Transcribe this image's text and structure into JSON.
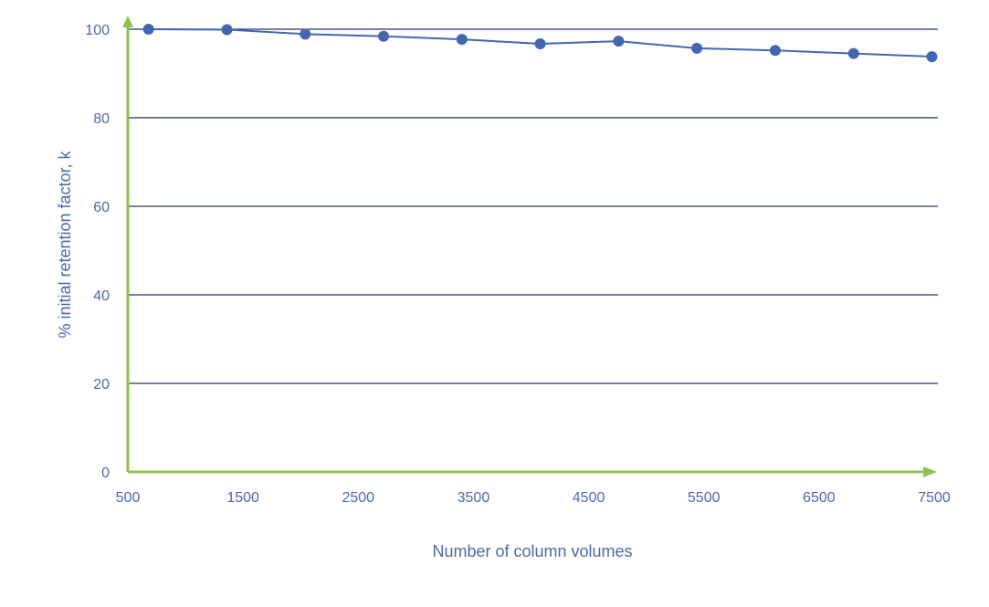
{
  "chart_data": {
    "type": "line",
    "title": "",
    "xlabel": "Number of column volumes",
    "ylabel": "% initial retention factor, k",
    "xlim": [
      500,
      7500
    ],
    "ylim": [
      0,
      100
    ],
    "xticks": [
      500,
      1500,
      2500,
      3500,
      4500,
      5500,
      6500,
      7500
    ],
    "yticks": [
      0,
      20,
      40,
      60,
      80,
      100
    ],
    "grid": "horizontal",
    "legend": "none",
    "series": [
      {
        "x": [
          680,
          1360,
          2040,
          2720,
          3400,
          4080,
          4760,
          5440,
          6120,
          6800,
          7480
        ],
        "y": [
          100,
          99.9,
          98.9,
          98.4,
          97.7,
          96.7,
          97.3,
          95.7,
          95.2,
          94.5,
          93.8
        ]
      }
    ]
  },
  "colors": {
    "series": "#4466b0",
    "gridline": "#1f3864",
    "axis": "#92c050",
    "text": "#4a6aa8"
  }
}
